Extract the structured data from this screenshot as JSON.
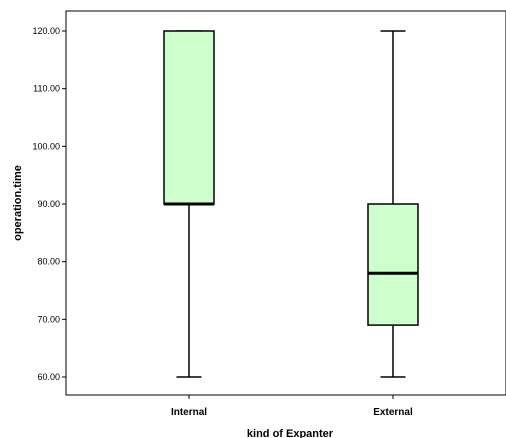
{
  "chart_data": {
    "type": "boxplot",
    "title": "",
    "xlabel": "kind of Expanter",
    "ylabel": "operation.time",
    "ylim": [
      57,
      124.5
    ],
    "yticks": [
      60,
      70,
      80,
      90,
      100,
      110,
      120
    ],
    "ytick_labels": [
      "60.00",
      "70.00",
      "80.00",
      "90.00",
      "100.00",
      "110.00",
      "120.00"
    ],
    "grid": false,
    "legend": "none",
    "categories": [
      "Internal",
      "External"
    ],
    "boxes": [
      {
        "category": "Internal",
        "min": 60,
        "q1": 90,
        "median": 90,
        "q3": 120,
        "max": 120
      },
      {
        "category": "External",
        "min": 60,
        "q1": 69,
        "median": 78,
        "q3": 90,
        "max": 120
      }
    ],
    "colors": {
      "box_fill": "#ccffcc",
      "stroke": "#000000",
      "background": "#ffffff"
    }
  }
}
